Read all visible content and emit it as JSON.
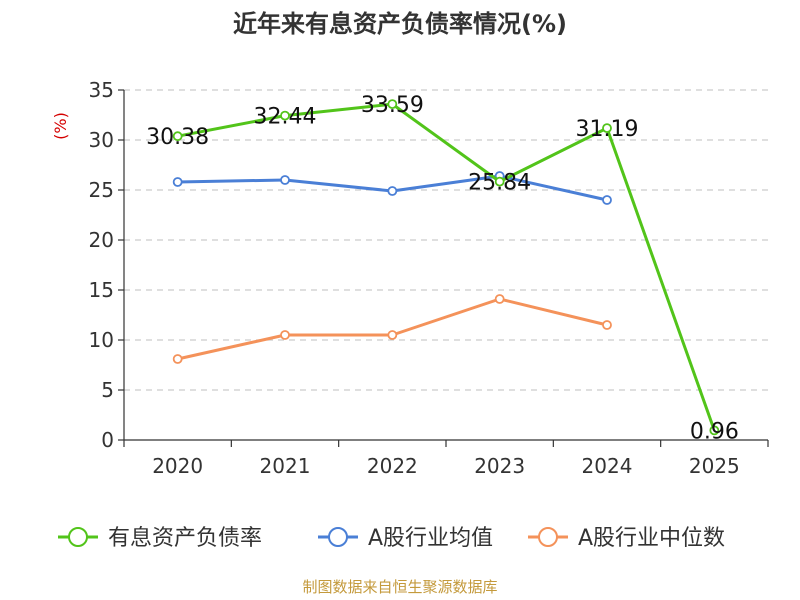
{
  "chart_data": {
    "type": "line",
    "title": "近年来有息资产负债率情况(%)",
    "ylabel": "(%)",
    "xlabel": "",
    "categories": [
      "2020",
      "2021",
      "2022",
      "2023",
      "2024",
      "2025"
    ],
    "ylim": [
      0,
      35
    ],
    "yticks": [
      0,
      5,
      10,
      15,
      20,
      25,
      30,
      35
    ],
    "grid": true,
    "legend_position": "bottom",
    "series": [
      {
        "name": "有息资产负债率",
        "color": "#52c41a",
        "values": [
          30.38,
          32.44,
          33.59,
          25.84,
          31.19,
          0.96
        ],
        "labels": [
          "30.38",
          "32.44",
          "33.59",
          "25.84",
          "31.19",
          "0.96"
        ]
      },
      {
        "name": "A股行业均值",
        "color": "#4a7fd6",
        "values": [
          25.8,
          26.0,
          24.9,
          26.4,
          24.0,
          null
        ]
      },
      {
        "name": "A股行业中位数",
        "color": "#f4925a",
        "values": [
          8.1,
          10.5,
          10.5,
          14.1,
          11.5,
          null
        ]
      }
    ]
  },
  "footer": {
    "source": "制图数据来自恒生聚源数据库",
    "source_color": "#c49a3c"
  },
  "colors": {
    "axis": "#333333",
    "grid": "#cccccc",
    "ylabel": "#d40000"
  }
}
